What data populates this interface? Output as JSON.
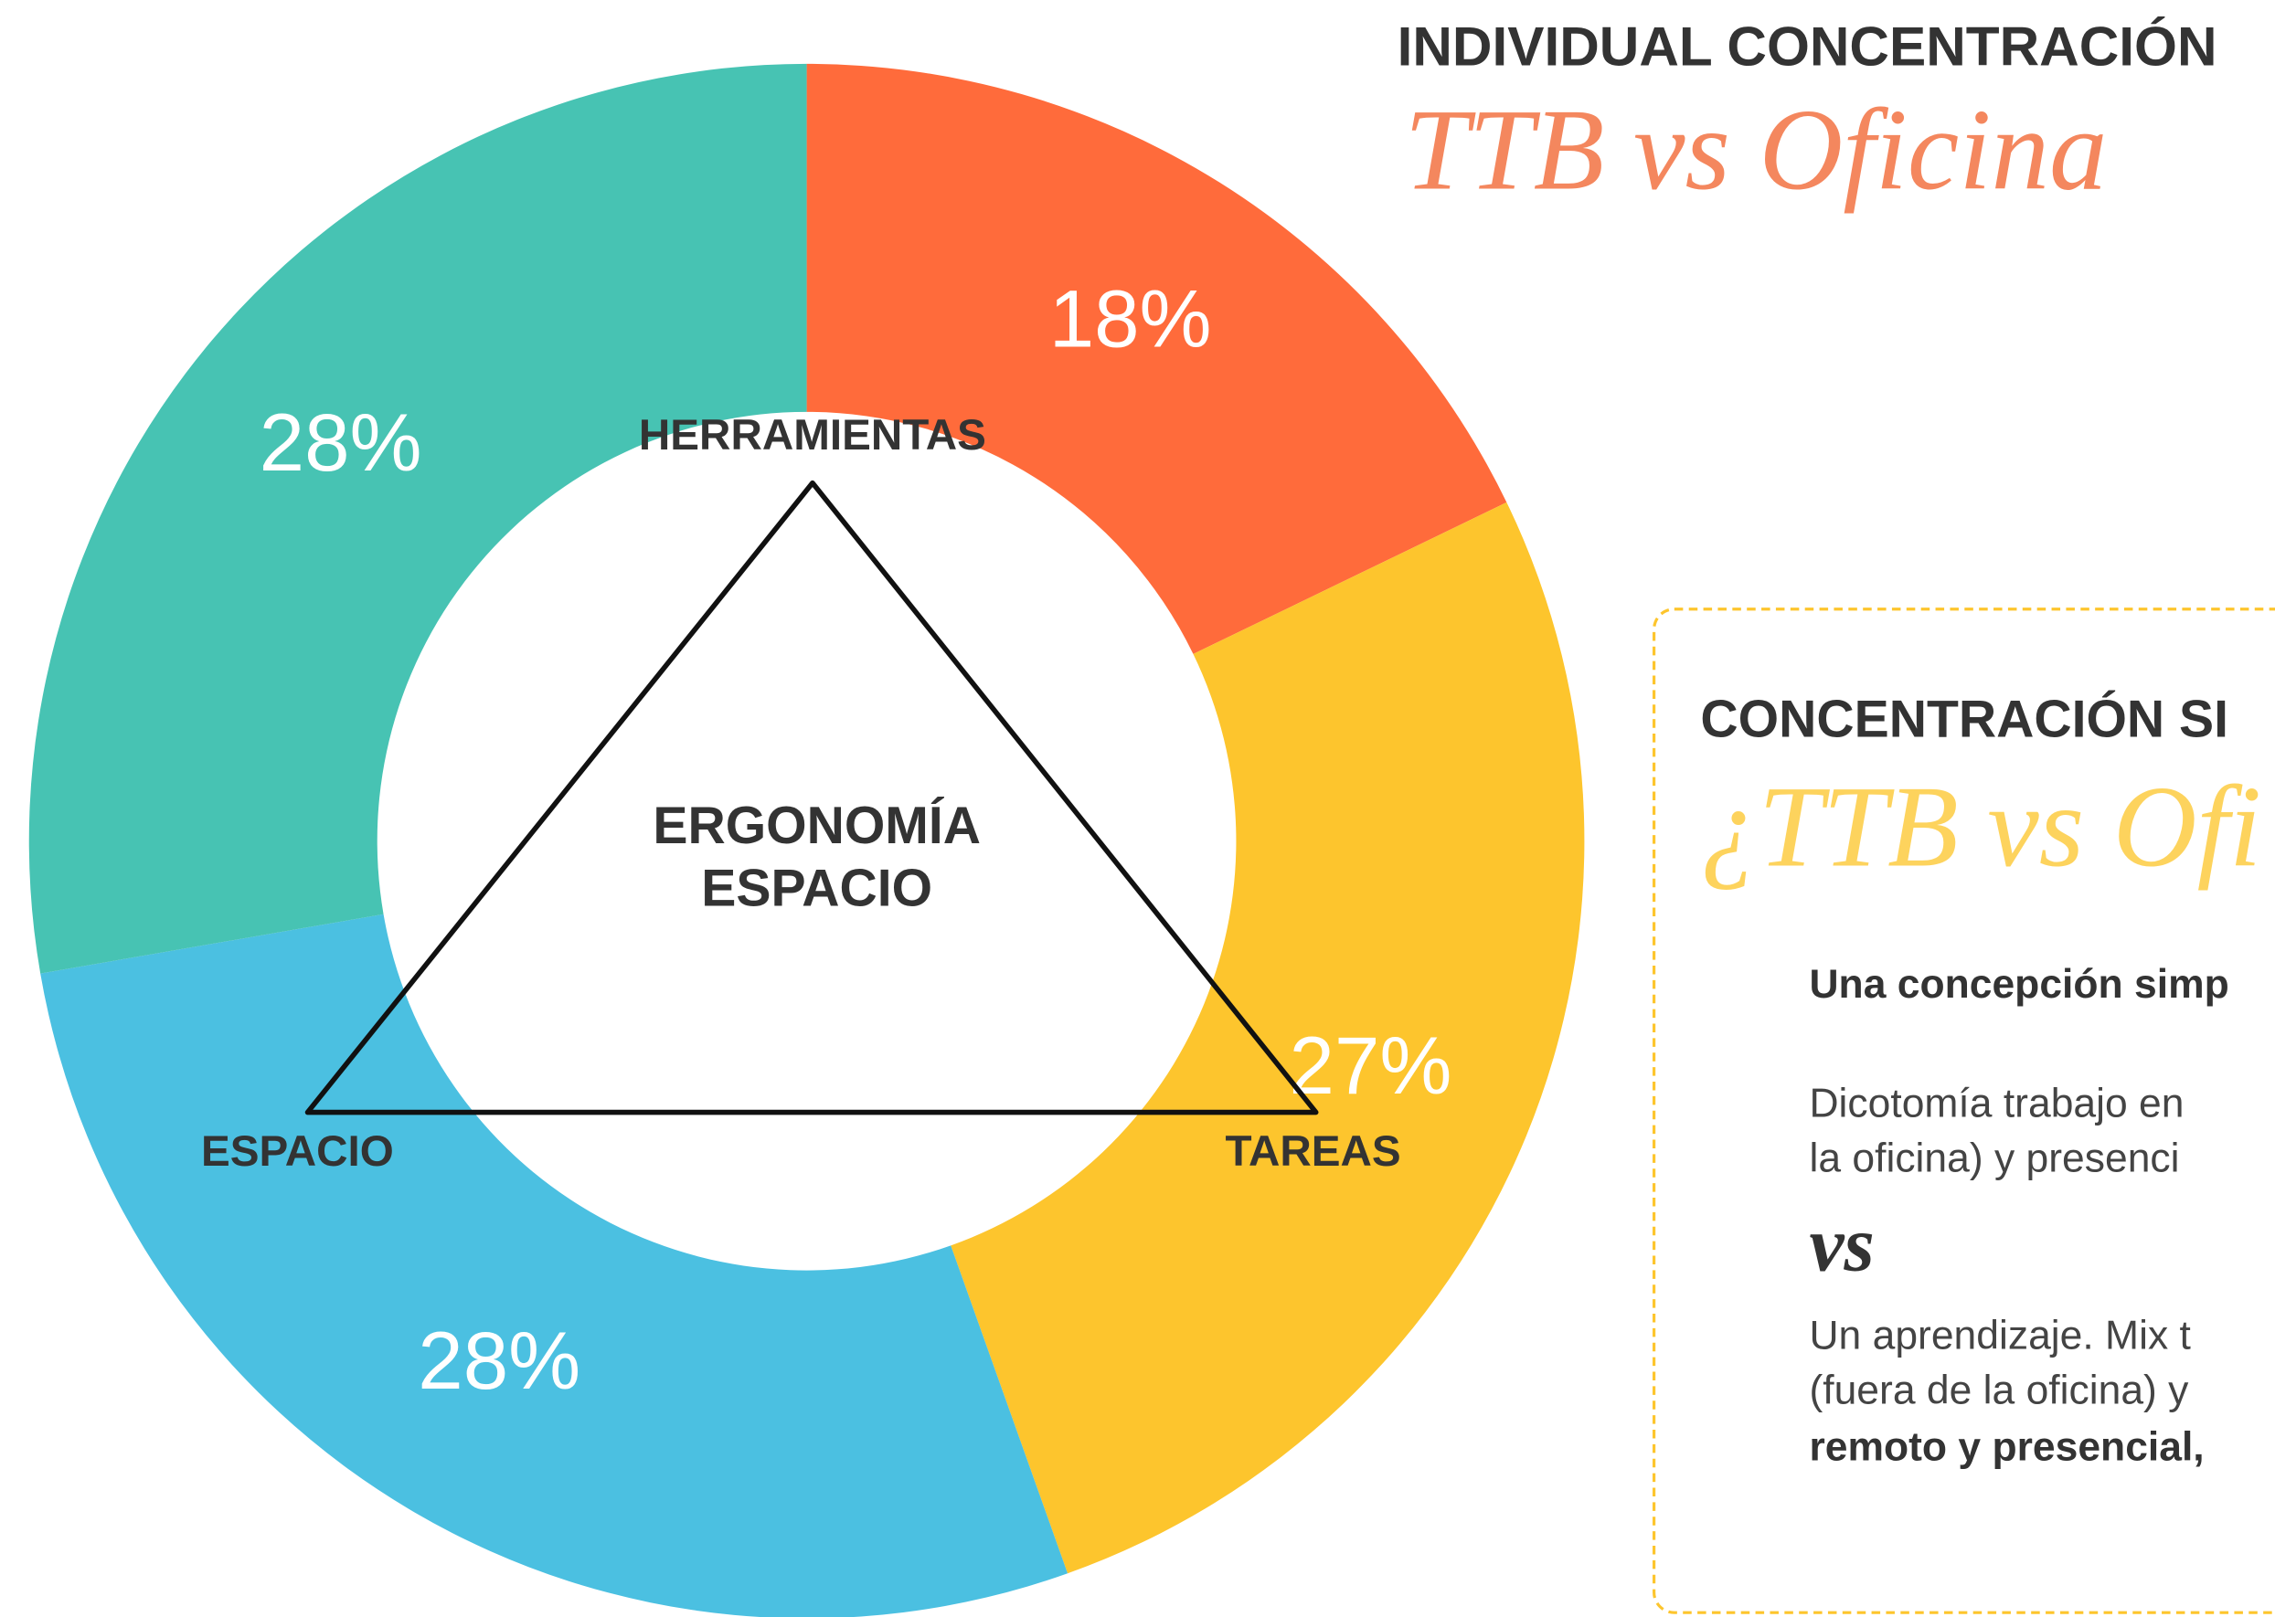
{
  "chart_data": {
    "type": "donut",
    "title": "INDIVIDUAL CONCENTRACIÓN",
    "subtitle": "TTB vs Oficina",
    "values": [
      18,
      27,
      28,
      28
    ],
    "value_labels": [
      "18%",
      "27%",
      "28%",
      "28%"
    ],
    "colors": [
      "#ff6b3b",
      "#fdc52d",
      "#4bc0e1",
      "#47c3b3"
    ],
    "annotations": [
      "HERRAMIENTAS",
      "TAREAS",
      "ESPACIO",
      "ERGONOMÍA",
      "ESPACIO"
    ]
  },
  "panel": {
    "heading": "CONCENTRACIÓN SI",
    "subheading": "¿TTB vs Ofi",
    "lead": "Una concepción simp",
    "para1": [
      "Dicotomía trabajo en",
      "la oficina) y presenci"
    ],
    "vs": "vs",
    "para2": [
      "Un aprendizaje. Mix t",
      "(fuera de la oficina) y"
    ],
    "para2_bold": "remoto y presencial,"
  }
}
